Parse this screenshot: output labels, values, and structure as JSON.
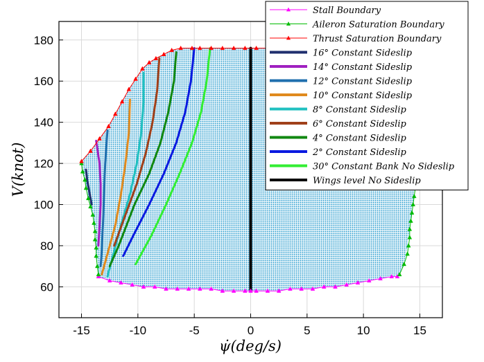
{
  "chart_data": {
    "type": "line",
    "title": "",
    "xlabel": "ψ̇(deg/s)",
    "ylabel": "V(knot)",
    "xlim": [
      -17,
      17
    ],
    "ylim": [
      45,
      189
    ],
    "xticks": [
      -15,
      -10,
      -5,
      0,
      5,
      10,
      15
    ],
    "xtick_labels": [
      "-15",
      "-10",
      "-5",
      "0",
      "5",
      "10",
      "15"
    ],
    "yticks": [
      60,
      80,
      100,
      120,
      140,
      160,
      180
    ],
    "ytick_labels": [
      "60",
      "80",
      "100",
      "120",
      "140",
      "160",
      "180"
    ],
    "grid": true,
    "legend_position": "top-right",
    "colors": {
      "stall": "#ff00ff",
      "aileron": "#00bb00",
      "thrust": "#ff0000",
      "fill": "#2e9fd0"
    },
    "series": [
      {
        "name": "Stall Boundary",
        "color": "#ff00ff",
        "marker": "triangle",
        "width": 1,
        "x": [
          -13.5,
          -12.5,
          -11.5,
          -10.5,
          -9.5,
          -8.5,
          -7.5,
          -6.5,
          -5.5,
          -4.5,
          -3.5,
          -2.5,
          -1.5,
          -0.5,
          0,
          0.5,
          1.5,
          2.5,
          3.5,
          4.5,
          5.5,
          6.5,
          7.5,
          8.5,
          9.5,
          10.5,
          11.5,
          12.5,
          13.0
        ],
        "y": [
          65,
          63,
          62,
          61,
          60,
          60,
          59,
          59,
          59,
          59,
          59,
          58,
          58,
          58,
          58,
          58,
          58,
          58,
          59,
          59,
          59,
          60,
          60,
          61,
          62,
          63,
          64,
          65,
          65
        ]
      },
      {
        "name": "Aileron Saturation Boundary",
        "color": "#00bb00",
        "marker": "triangle",
        "width": 1,
        "x": [
          -15.0,
          -14.9,
          -14.7,
          -14.6,
          -14.4,
          -14.2,
          -14.0,
          -13.9,
          -13.8,
          -13.8,
          -13.7,
          -13.7,
          -13.6,
          -13.5
        ],
        "y": [
          120,
          116,
          112,
          108,
          103,
          99,
          95,
          91,
          87,
          83,
          79,
          75,
          70,
          66
        ],
        "x2": [
          13.2,
          13.6,
          13.9,
          14.0,
          14.1,
          14.1,
          14.2,
          14.3,
          14.4,
          14.5,
          14.6
        ],
        "y2": [
          66,
          71,
          76,
          80,
          84,
          88,
          92,
          96,
          100,
          104,
          108
        ]
      },
      {
        "name": "Thrust Saturation Boundary",
        "color": "#ff0000",
        "marker": "triangle",
        "width": 1,
        "x": [
          -15.0,
          -14.2,
          -13.4,
          -12.6,
          -12.0,
          -11.4,
          -10.8,
          -10.2,
          -9.6,
          -9.0,
          -8.4,
          -7.7,
          -7.0,
          -6.2,
          -5.2,
          -4.5,
          -3.5,
          -2.5,
          -1.5,
          -0.5,
          0.5,
          1.5,
          2.5,
          3.5,
          4.5,
          5.5,
          6.5,
          7.5,
          8.5
        ],
        "y": [
          121,
          126,
          132,
          138,
          144,
          150,
          156,
          161,
          166,
          169,
          171,
          173,
          175,
          176,
          176,
          176,
          176,
          176,
          176,
          176,
          176,
          176,
          176,
          176,
          176,
          176,
          176,
          176,
          176
        ]
      },
      {
        "name": "16° Constant Sideslip",
        "color": "#1f2f6e",
        "marker": "none",
        "width": 3,
        "x": [
          -14.6,
          -14.5,
          -14.3,
          -14.1
        ],
        "y": [
          117,
          112,
          106,
          100
        ]
      },
      {
        "name": "14° Constant Sideslip",
        "color": "#a020c0",
        "marker": "none",
        "width": 3,
        "x": [
          -13.7,
          -13.4,
          -13.3,
          -13.3,
          -13.4,
          -13.5
        ],
        "y": [
          131,
          120,
          110,
          100,
          90,
          80
        ]
      },
      {
        "name": "12° Constant Sideslip",
        "color": "#1f6fae",
        "marker": "none",
        "width": 3,
        "x": [
          -12.7,
          -12.9,
          -13.0,
          -13.1,
          -13.2,
          -13.3
        ],
        "y": [
          136,
          120,
          105,
          90,
          78,
          70
        ]
      },
      {
        "name": "10° Constant Sideslip",
        "color": "#e08a1e",
        "marker": "none",
        "width": 3,
        "x": [
          -10.7,
          -10.8,
          -11.1,
          -11.5,
          -12.0,
          -12.6,
          -13.2
        ],
        "y": [
          151,
          135,
          120,
          105,
          90,
          78,
          66
        ]
      },
      {
        "name": "8° Constant Sideslip",
        "color": "#20c0c0",
        "marker": "none",
        "width": 3,
        "x": [
          -9.5,
          -9.5,
          -9.7,
          -10.1,
          -10.7,
          -11.5,
          -12.7
        ],
        "y": [
          164,
          150,
          135,
          120,
          105,
          90,
          65
        ]
      },
      {
        "name": "6° Constant Sideslip",
        "color": "#a0401a",
        "marker": "none",
        "width": 3,
        "x": [
          -8.1,
          -8.3,
          -8.7,
          -9.3,
          -10.1,
          -11.1,
          -12.1
        ],
        "y": [
          171,
          155,
          140,
          125,
          110,
          95,
          80
        ]
      },
      {
        "name": "4° Constant Sideslip",
        "color": "#118811",
        "marker": "none",
        "width": 3,
        "x": [
          -6.6,
          -6.8,
          -7.3,
          -8.0,
          -9.0,
          -10.3,
          -11.7,
          -12.5
        ],
        "y": [
          174,
          160,
          145,
          130,
          115,
          100,
          80,
          70
        ]
      },
      {
        "name": "2° Constant Sideslip",
        "color": "#0a1ae0",
        "marker": "none",
        "width": 3,
        "x": [
          -5.0,
          -5.3,
          -5.8,
          -6.6,
          -7.7,
          -9.0,
          -10.4,
          -11.3
        ],
        "y": [
          176,
          160,
          145,
          130,
          115,
          100,
          85,
          75
        ]
      },
      {
        "name": "30° Constant Bank No Sideslip",
        "color": "#33ee33",
        "marker": "none",
        "width": 3,
        "x": [
          -3.6,
          -3.9,
          -4.4,
          -5.2,
          -6.3,
          -7.5,
          -8.8,
          -10.2
        ],
        "y": [
          176,
          160,
          145,
          130,
          115,
          100,
          85,
          71
        ]
      },
      {
        "name": "Wings level No Sideslip",
        "color": "#000000",
        "marker": "none",
        "width": 4,
        "x": [
          0,
          0
        ],
        "y": [
          58,
          176
        ]
      }
    ],
    "legend_entries": [
      {
        "label": "Stall Boundary",
        "color": "#ff00ff",
        "marker": "triangle"
      },
      {
        "label": "Aileron Saturation Boundary",
        "color": "#00bb00",
        "marker": "triangle"
      },
      {
        "label": "Thrust Saturation Boundary",
        "color": "#ff0000",
        "marker": "triangle"
      },
      {
        "label": "16° Constant Sideslip",
        "color": "#1f2f6e",
        "marker": "none"
      },
      {
        "label": "14° Constant Sideslip",
        "color": "#a020c0",
        "marker": "none"
      },
      {
        "label": "12° Constant Sideslip",
        "color": "#1f6fae",
        "marker": "none"
      },
      {
        "label": "10° Constant Sideslip",
        "color": "#e08a1e",
        "marker": "none"
      },
      {
        "label": "8° Constant Sideslip",
        "color": "#20c0c0",
        "marker": "none"
      },
      {
        "label": "6° Constant Sideslip",
        "color": "#a0401a",
        "marker": "none"
      },
      {
        "label": "4° Constant Sideslip",
        "color": "#118811",
        "marker": "none"
      },
      {
        "label": "2° Constant Sideslip",
        "color": "#0a1ae0",
        "marker": "none"
      },
      {
        "label": "30° Constant Bank No Sideslip",
        "color": "#33ee33",
        "marker": "none"
      },
      {
        "label": "Wings level No Sideslip",
        "color": "#000000",
        "marker": "none"
      }
    ],
    "envelope": {
      "x": [
        -15.0,
        -14.2,
        -13.4,
        -12.6,
        -12.0,
        -11.4,
        -10.8,
        -10.2,
        -9.6,
        -9.0,
        -8.4,
        -7.7,
        -7.0,
        -6.2,
        -5.2,
        8.5,
        14.7,
        14.6,
        14.4,
        14.3,
        14.2,
        14.1,
        14.0,
        13.9,
        13.6,
        13.2,
        12.5,
        11.5,
        10.5,
        9.5,
        8.5,
        7.5,
        6.5,
        5.5,
        4.5,
        3.5,
        2.5,
        1.5,
        0.5,
        0,
        -0.5,
        -1.5,
        -2.5,
        -3.5,
        -4.5,
        -5.5,
        -6.5,
        -7.5,
        -8.5,
        -9.5,
        -10.5,
        -11.5,
        -12.5,
        -13.5,
        -13.6,
        -13.7,
        -13.8,
        -14.0,
        -14.2,
        -14.4,
        -14.6,
        -14.7,
        -14.9
      ],
      "y": [
        121,
        126,
        132,
        138,
        144,
        150,
        156,
        161,
        166,
        169,
        171,
        173,
        175,
        176,
        176,
        176,
        176,
        108,
        100,
        96,
        92,
        88,
        84,
        80,
        71,
        66,
        65,
        64,
        63,
        62,
        61,
        60,
        60,
        59,
        59,
        59,
        58,
        58,
        58,
        58,
        58,
        58,
        58,
        59,
        59,
        59,
        59,
        59,
        60,
        60,
        61,
        62,
        63,
        65,
        70,
        79,
        87,
        95,
        99,
        103,
        108,
        112,
        116
      ]
    }
  }
}
